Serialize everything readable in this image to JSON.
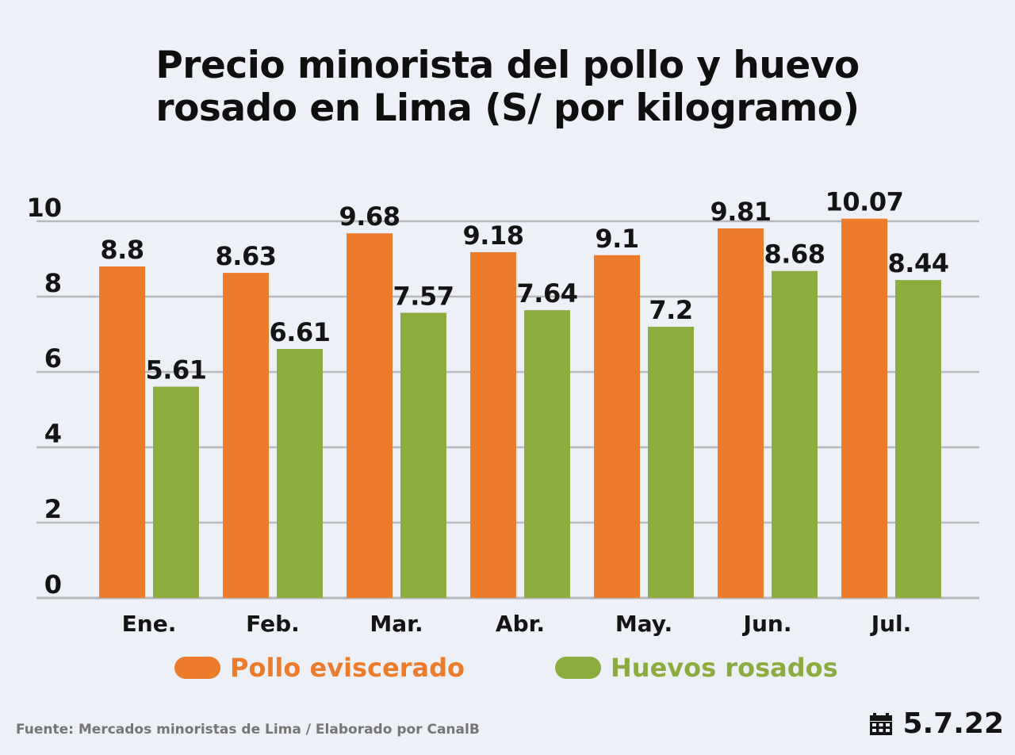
{
  "title_line1": "Precio minorista del pollo y huevo",
  "title_line2": "rosado en Lima (S/ por kilogramo)",
  "colors": {
    "pollo": "#ec7c2c",
    "huevos": "#8cac40",
    "grid": "#b6b8bc",
    "text": "#141414"
  },
  "chart_data": {
    "type": "bar",
    "categories": [
      "Ene.",
      "Feb.",
      "Mar.",
      "Abr.",
      "May.",
      "Jun.",
      "Jul."
    ],
    "series": [
      {
        "name": "Pollo eviscerado",
        "values": [
          8.8,
          8.63,
          9.68,
          9.18,
          9.1,
          9.81,
          10.07
        ]
      },
      {
        "name": "Huevos rosados",
        "values": [
          5.61,
          6.61,
          7.57,
          7.64,
          7.2,
          8.68,
          8.44
        ]
      }
    ],
    "value_labels": [
      [
        "8.8",
        "8.63",
        "9.68",
        "9.18",
        "9.1",
        "9.81",
        "10.07"
      ],
      [
        "5.61",
        "6.61",
        "7.57",
        "7.64",
        "7.2",
        "8.68",
        "8.44"
      ]
    ],
    "yticks": [
      "0",
      "2",
      "4",
      "6",
      "8",
      "10"
    ],
    "ylim": [
      0,
      10
    ],
    "grid": true,
    "legend_position": "bottom"
  },
  "legend": {
    "pollo": "Pollo eviscerado",
    "huevos": "Huevos rosados"
  },
  "footer": {
    "source": "Fuente: Mercados minoristas de Lima / Elaborado por CanalB",
    "date": "5.7.22",
    "date_icon": "calendar-icon"
  }
}
